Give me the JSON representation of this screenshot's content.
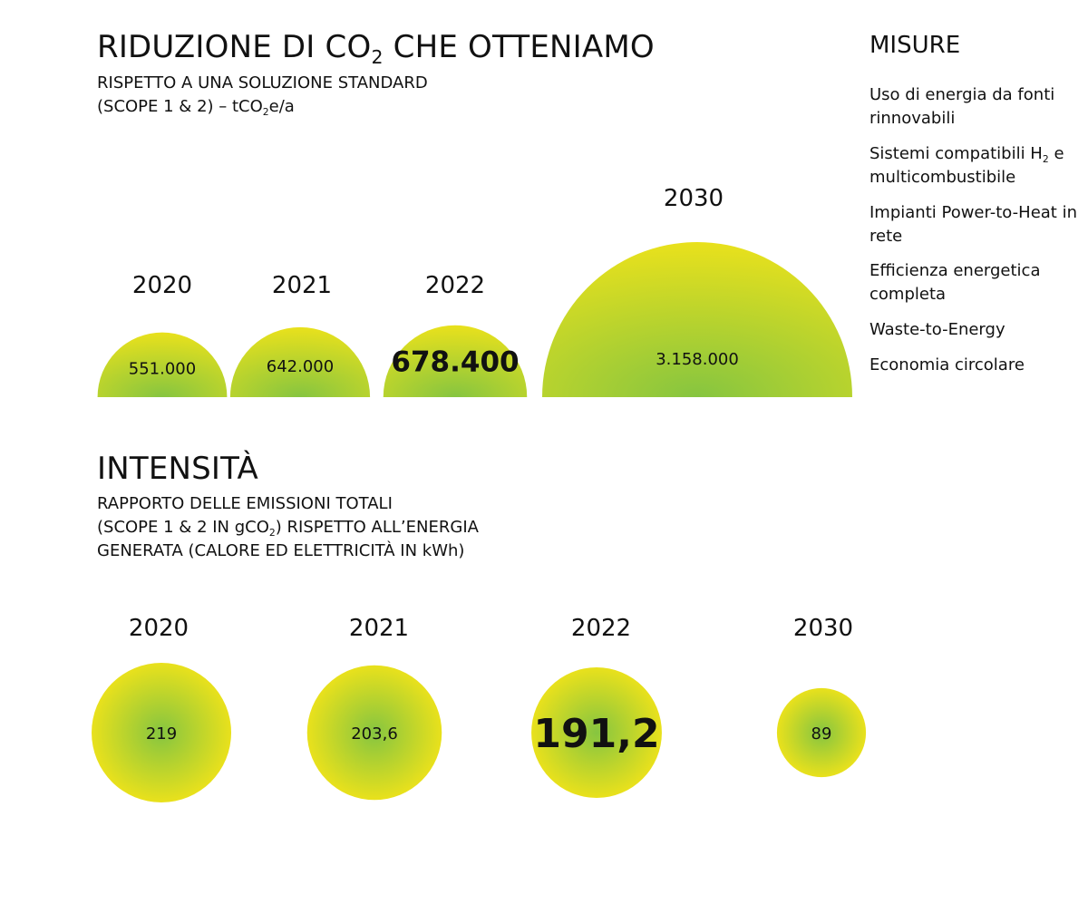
{
  "reduction": {
    "title_main": "RIDUZIONE DI CO",
    "title_sub": "2",
    "title_rest": " CHE OTTENIAMO",
    "subtitle_line1": "RISPETTO A UNA SOLUZIONE STANDARD",
    "subtitle_line2_pre": "(SCOPE 1 & 2) – tCO",
    "subtitle_line2_sub": "2",
    "subtitle_line2_post": "e/a"
  },
  "intensity": {
    "title": "INTENSITÀ",
    "subtitle_line1": "RAPPORTO DELLE EMISSIONI TOTALI",
    "subtitle_line2_pre": "(SCOPE 1 & 2 IN gCO",
    "subtitle_line2_sub": "2",
    "subtitle_line2_post": ") RISPETTO ALL’ENERGIA",
    "subtitle_line3": "GENERATA (CALORE ED ELETTRICITÀ IN kWh)"
  },
  "measures": {
    "heading": "MISURE",
    "items": [
      {
        "label": "Uso di energia da fonti rinnovabili"
      },
      {
        "label": "Sistemi compatibili H",
        "sub": "2",
        "label_post": " e multicombustibile"
      },
      {
        "label": "Impianti Power-to-Heat in rete"
      },
      {
        "label": "Efficienza energetica completa"
      },
      {
        "label": "Waste-to-Energy"
      },
      {
        "label": "Economia circolare"
      }
    ]
  },
  "colors": {
    "outer": "#e9e11c",
    "center": "#86c540",
    "text": "#111111"
  },
  "chart_data": [
    {
      "type": "bar",
      "shape": "semicircle",
      "categories": [
        "2020",
        "2021",
        "2022",
        "2030"
      ],
      "values": [
        551000,
        642000,
        678400,
        3158000
      ],
      "value_labels": [
        "551.000",
        "642.000",
        "678.400",
        "3.158.000"
      ],
      "highlighted": "2022"
    },
    {
      "type": "bar",
      "shape": "circle",
      "categories": [
        "2020",
        "2021",
        "2022",
        "2030"
      ],
      "values": [
        219,
        203.6,
        191.2,
        89
      ],
      "value_labels": [
        "219",
        "203,6",
        "191,2",
        "89"
      ],
      "highlighted": "2022"
    }
  ]
}
